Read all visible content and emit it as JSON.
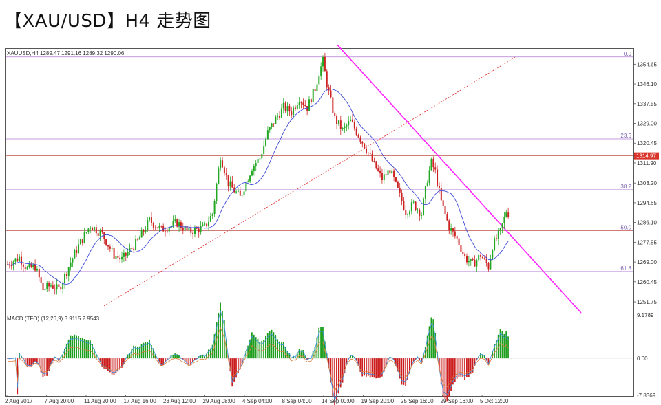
{
  "page": {
    "title": "【XAU/USD】H4 走势图"
  },
  "chart_data": [
    {
      "type": "candlestick",
      "symbol_header": "XAUUSD,H4  1289.47 1291.16 1289.32 1290.06",
      "ylim": [
        1247,
        1361
      ],
      "price_ticks": [
        "1354.65",
        "1346.10",
        "1337.55",
        "1329.00",
        "1320.45",
        "1311.90",
        "1303.20",
        "1294.65",
        "1286.10",
        "1277.55",
        "1269.00",
        "1260.45",
        "1251.75"
      ],
      "time_labels": [
        "2 Aug 2017",
        "7 Aug 20:00",
        "11 Aug 20:00",
        "17 Aug 16:00",
        "23 Aug 12:00",
        "29 Aug 08:00",
        "4 Sep 04:00",
        "8 Sep 04:00",
        "14 Sep 00:00",
        "19 Sep 20:00",
        "25 Sep 16:00",
        "29 Sep 16:00",
        "5 Oct 12:00"
      ],
      "bar_count": 240,
      "close_path": [
        [
          0,
          1268
        ],
        [
          6,
          1271
        ],
        [
          10,
          1266
        ],
        [
          14,
          1267
        ],
        [
          18,
          1257
        ],
        [
          22,
          1259
        ],
        [
          26,
          1257
        ],
        [
          32,
          1269
        ],
        [
          36,
          1276
        ],
        [
          42,
          1285
        ],
        [
          48,
          1281
        ],
        [
          54,
          1272
        ],
        [
          58,
          1270
        ],
        [
          66,
          1278
        ],
        [
          72,
          1287
        ],
        [
          78,
          1283
        ],
        [
          86,
          1286
        ],
        [
          92,
          1282
        ],
        [
          100,
          1284
        ],
        [
          104,
          1290
        ],
        [
          108,
          1315
        ],
        [
          112,
          1303
        ],
        [
          118,
          1297
        ],
        [
          124,
          1310
        ],
        [
          128,
          1314
        ],
        [
          132,
          1325
        ],
        [
          136,
          1331
        ],
        [
          140,
          1336
        ],
        [
          144,
          1334
        ],
        [
          148,
          1340
        ],
        [
          152,
          1336
        ],
        [
          156,
          1344
        ],
        [
          158,
          1351
        ],
        [
          160,
          1356
        ],
        [
          162,
          1346
        ],
        [
          166,
          1331
        ],
        [
          170,
          1326
        ],
        [
          174,
          1330
        ],
        [
          178,
          1324
        ],
        [
          182,
          1318
        ],
        [
          186,
          1311
        ],
        [
          190,
          1305
        ],
        [
          194,
          1309
        ],
        [
          198,
          1300
        ],
        [
          202,
          1291
        ],
        [
          206,
          1294
        ],
        [
          210,
          1290
        ],
        [
          213,
          1305
        ],
        [
          215,
          1312
        ],
        [
          217,
          1308
        ],
        [
          220,
          1295
        ],
        [
          224,
          1284
        ],
        [
          228,
          1279
        ],
        [
          232,
          1271
        ],
        [
          236,
          1268
        ],
        [
          240,
          1272
        ],
        [
          244,
          1267
        ],
        [
          246,
          1276
        ],
        [
          250,
          1282
        ],
        [
          253,
          1291
        ],
        [
          255,
          1289
        ]
      ],
      "horizontal_levels": [
        {
          "label": "0.0",
          "price": 1357.8,
          "color": "#b07ad4"
        },
        {
          "label": "23.6",
          "price": 1322.3,
          "color": "#b07ad4"
        },
        {
          "label": "1314.97",
          "price": 1314.97,
          "color": "#c0504d"
        },
        {
          "label": "38.2",
          "price": 1300.3,
          "color": "#b07ad4"
        },
        {
          "label": "50.0",
          "price": 1282.6,
          "color": "#c0504d"
        },
        {
          "label": "61.8",
          "price": 1264.9,
          "color": "#b07ad4"
        }
      ],
      "current_price": "1290.06",
      "downtrend_line": {
        "from": [
          154,
          1363
        ],
        "to": [
          248,
          1247
        ],
        "color": "#ff22ff"
      },
      "uptrend_line": {
        "from": [
          27,
          1250
        ],
        "to": [
          180,
          1358
        ],
        "color": "#e23a3a"
      },
      "ma_color": "#3b49d8",
      "candle_up_color": "#22a822",
      "candle_down_color": "#cc2222"
    },
    {
      "type": "bar",
      "title": "MACD (TFO) (12,26,9) 3.9115 2.9543",
      "ylim": [
        -7.8369,
        9.1789
      ],
      "y_ticks": [
        "9.1789",
        "0.00",
        "-7.8369"
      ],
      "bar_count": 240,
      "up_color": "#1e9e1e",
      "down_color": "#cc1e1e",
      "signal_colors": [
        "#3a8fe0",
        "#e07d3a"
      ]
    }
  ]
}
